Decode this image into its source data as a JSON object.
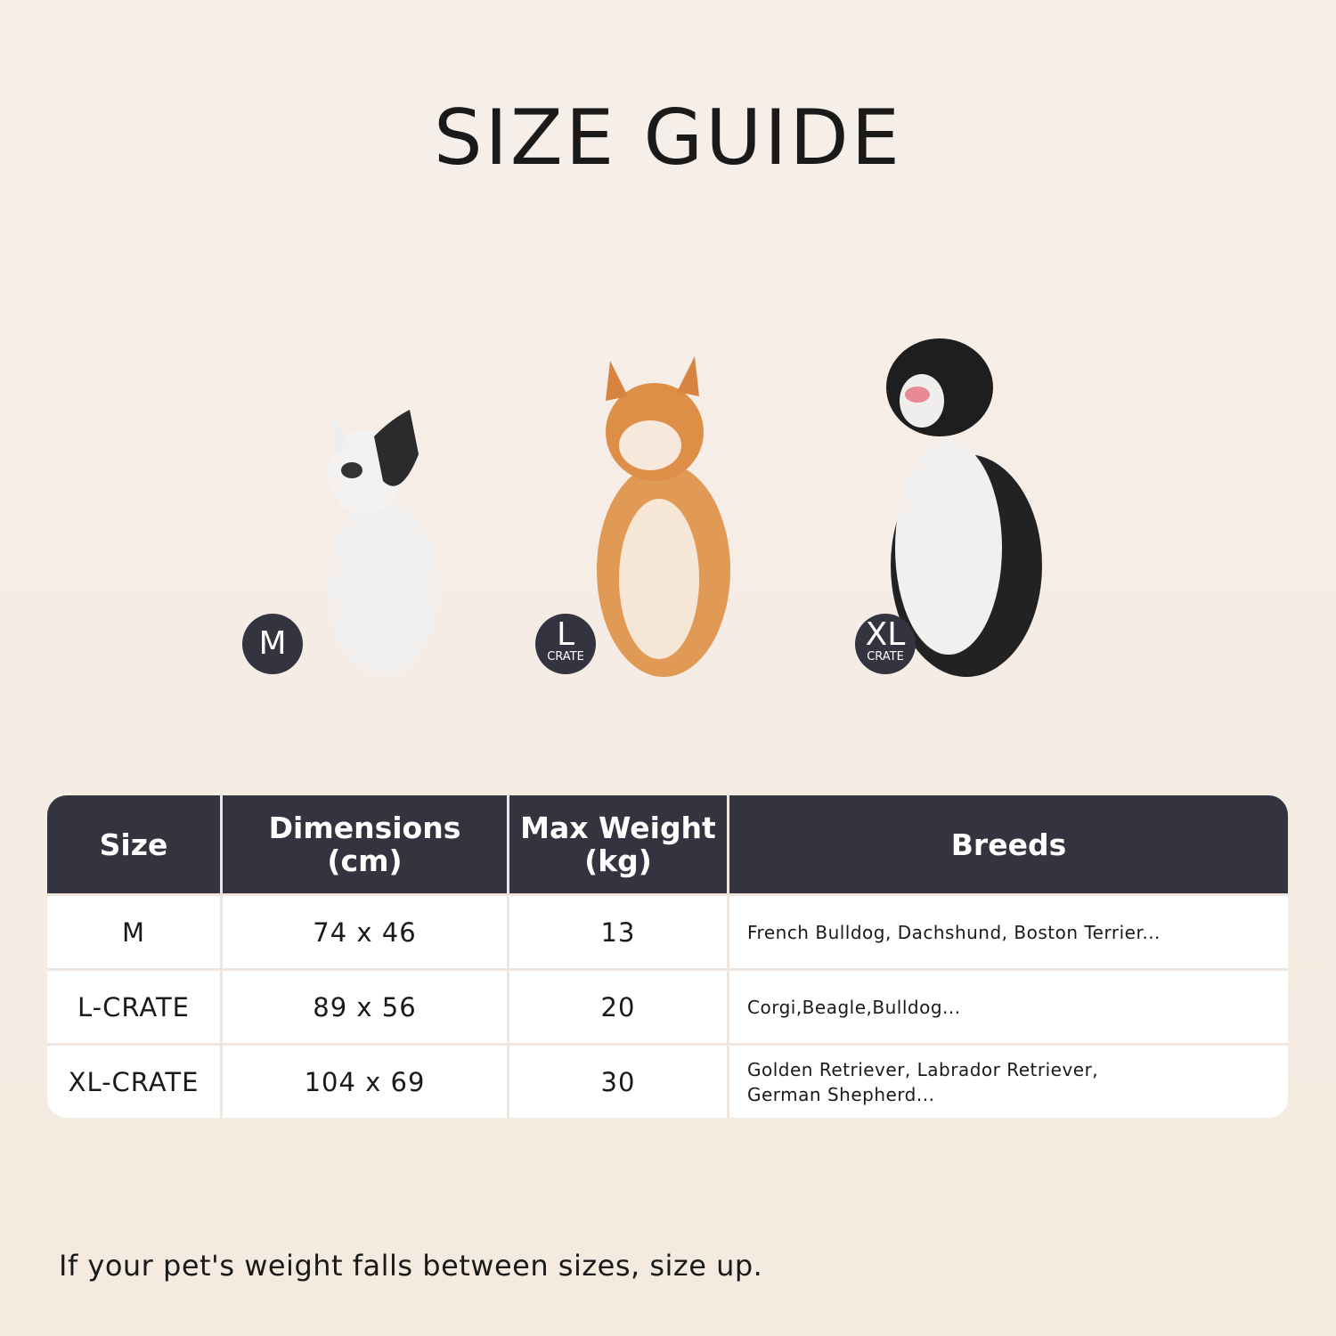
{
  "title": "SIZE GUIDE",
  "badges": [
    {
      "big": "M",
      "small": ""
    },
    {
      "big": "L",
      "small": "CRATE"
    },
    {
      "big": "XL",
      "small": "CRATE"
    }
  ],
  "table": {
    "headers": [
      "Size",
      "Dimensions\n(cm)",
      "Max Weight\n(kg)",
      "Breeds"
    ],
    "header_lines": [
      [
        "Size"
      ],
      [
        "Dimensions",
        "(cm)"
      ],
      [
        "Max Weight",
        "(kg)"
      ],
      [
        "Breeds"
      ]
    ],
    "rows": [
      {
        "size": "M",
        "dimensions": "74 x 46",
        "max_weight": "13",
        "breeds": "French Bulldog, Dachshund, Boston Terrier..."
      },
      {
        "size": "L-CRATE",
        "dimensions": "89 x 56",
        "max_weight": "20",
        "breeds": "Corgi,Beagle,Bulldog..."
      },
      {
        "size": "XL-CRATE",
        "dimensions": "104 x 69",
        "max_weight": "30",
        "breeds": "Golden Retriever, Labrador Retriever, German Shepherd..."
      }
    ]
  },
  "note": "If your pet's weight falls between sizes, size up.",
  "colors": {
    "header_bg": "#33343f",
    "badge_bg": "#33343f",
    "background": "#f5ece4"
  }
}
